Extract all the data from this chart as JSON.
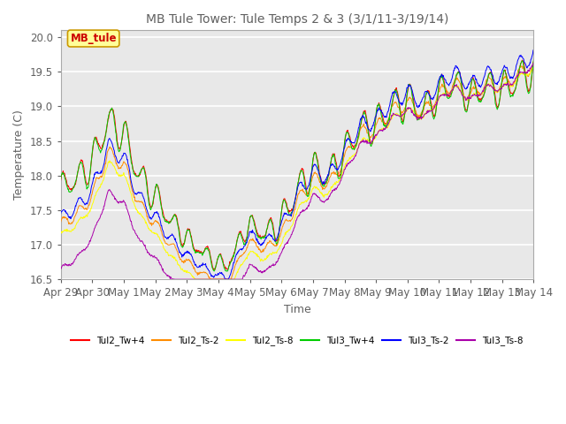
{
  "title": "MB Tule Tower: Tule Temps 2 & 3 (3/1/11-3/19/14)",
  "xlabel": "Time",
  "ylabel": "Temperature (C)",
  "ylim": [
    16.5,
    20.1
  ],
  "xlim": [
    0,
    15
  ],
  "xtick_labels": [
    "Apr 29",
    "Apr 30",
    "May 1",
    "May 2",
    "May 3",
    "May 4",
    "May 5",
    "May 6",
    "May 7",
    "May 8",
    "May 9",
    "May 10",
    "May 11",
    "May 12",
    "May 13",
    "May 14"
  ],
  "ytick_labels": [
    "16.5",
    "17.0",
    "17.5",
    "18.0",
    "18.5",
    "19.0",
    "19.5",
    "20.0"
  ],
  "series_colors": {
    "Tul2_Tw+4": "#ff0000",
    "Tul2_Ts-2": "#ff8c00",
    "Tul2_Ts-8": "#ffff00",
    "Tul3_Tw+4": "#00cc00",
    "Tul3_Ts-2": "#0000ff",
    "Tul3_Ts-8": "#aa00aa"
  },
  "background_color": "#ffffff",
  "plot_background": "#e8e8e8",
  "grid_color": "#ffffff",
  "annotation_text": "MB_tule",
  "title_color": "#606060",
  "tick_color": "#606060"
}
